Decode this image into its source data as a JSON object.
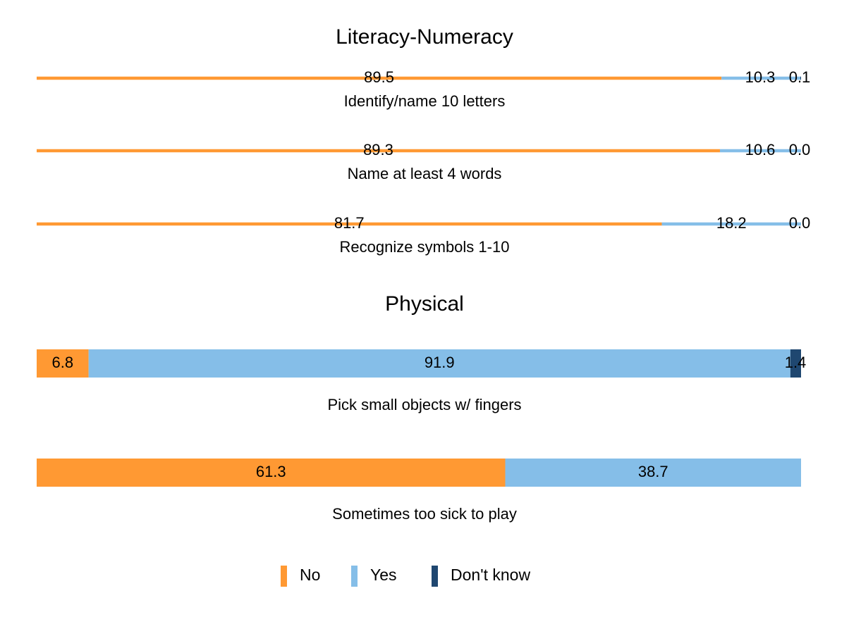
{
  "chart_data": {
    "type": "bar",
    "orientation": "horizontal",
    "stacked": true,
    "normalized_percent": true,
    "grid": false,
    "legend_position": "bottom",
    "legend": [
      {
        "name": "No",
        "color": "#FF9933"
      },
      {
        "name": "Yes",
        "color": "#85BEE8"
      },
      {
        "name": "Don't know",
        "color": "#1F4770"
      }
    ],
    "panels": [
      {
        "title": "Literacy-Numeracy",
        "bar_style": "line",
        "items": [
          {
            "label": "Identify/name 10 letters",
            "values": [
              89.5,
              10.3,
              0.1
            ],
            "value_labels": [
              "89.5",
              "10.3",
              "0.1"
            ]
          },
          {
            "label": "Name at least 4 words",
            "values": [
              89.3,
              10.6,
              0.0
            ],
            "value_labels": [
              "89.3",
              "10.6",
              "0.0"
            ]
          },
          {
            "label": "Recognize symbols 1-10",
            "values": [
              81.7,
              18.2,
              0.0
            ],
            "value_labels": [
              "81.7",
              "18.2",
              "0.0"
            ]
          }
        ]
      },
      {
        "title": "Physical",
        "bar_style": "block",
        "items": [
          {
            "label": "Pick small objects w/ fingers",
            "values": [
              6.8,
              91.9,
              1.4
            ],
            "value_labels": [
              "6.8",
              "91.9",
              "1.4"
            ]
          },
          {
            "label": "Sometimes too sick to play",
            "values": [
              61.3,
              38.7,
              0.0
            ],
            "value_labels": [
              "61.3",
              "38.7",
              ""
            ]
          }
        ]
      }
    ]
  }
}
